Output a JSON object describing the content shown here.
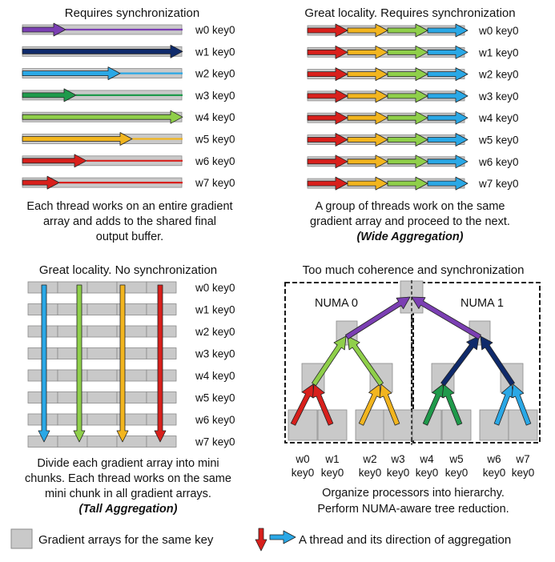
{
  "colors": {
    "purple": "#7b3fb3",
    "navy": "#0f2a6b",
    "cyan": "#2aa8e6",
    "green": "#1f9a4b",
    "lime": "#8fcf4a",
    "yellow": "#f2b51f",
    "red": "#d8201c",
    "block_fill": "#c9c9c9",
    "block_stroke": "#8a8a8a"
  },
  "panel_a": {
    "title": "Requires synchronization",
    "rows": [
      "w0 key0",
      "w1 key0",
      "w2 key0",
      "w3 key0",
      "w4 key0",
      "w5 key0",
      "w6 key0",
      "w7 key0"
    ],
    "caption": [
      "Each thread works on an entire gradient",
      "array and adds to the shared final",
      "output buffer."
    ]
  },
  "panel_b": {
    "title": "Great locality. Requires synchronization",
    "rows": [
      "w0 key0",
      "w1 key0",
      "w2 key0",
      "w3 key0",
      "w4 key0",
      "w5 key0",
      "w6 key0",
      "w7 key0"
    ],
    "caption": [
      "A group of threads work on the same",
      "gradient array and proceed to the next."
    ],
    "emphasis": "(Wide Aggregation)"
  },
  "panel_c": {
    "title": "Great locality. No synchronization",
    "rows": [
      "w0 key0",
      "w1 key0",
      "w2 key0",
      "w3 key0",
      "w4 key0",
      "w5 key0",
      "w6 key0",
      "w7 key0"
    ],
    "caption": [
      "Divide each gradient array into mini",
      "chunks. Each thread works on the same",
      "mini chunk in all gradient arrays."
    ],
    "emphasis": "(Tall Aggregation)"
  },
  "panel_d": {
    "title": "Too much coherence and synchronization",
    "numa": [
      "NUMA 0",
      "NUMA 1"
    ],
    "workers": [
      "w0",
      "w1",
      "w2",
      "w3",
      "w4",
      "w5",
      "w6",
      "w7"
    ],
    "keys": [
      "key0",
      "key0",
      "key0",
      "key0",
      "key0",
      "key0",
      "key0",
      "key0"
    ],
    "caption": [
      "Organize processors into hierarchy.",
      "Perform NUMA-aware tree reduction."
    ]
  },
  "legend": {
    "block_label": "Gradient arrays for the same key",
    "arrow_label": "A thread and its direction of aggregation"
  }
}
